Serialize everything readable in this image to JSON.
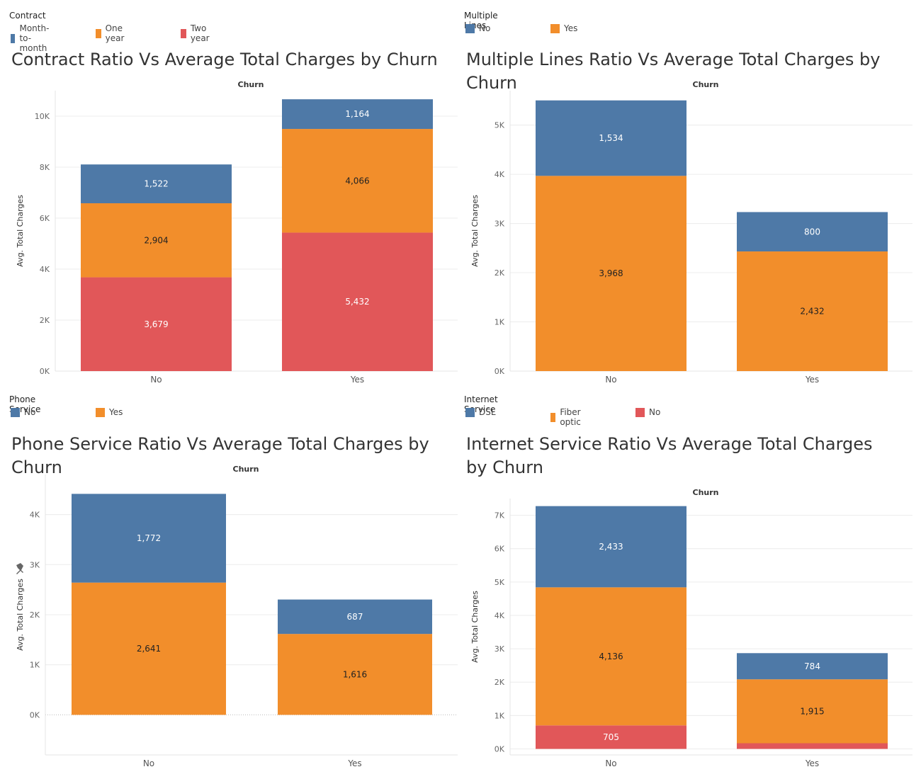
{
  "churn_header": "Churn",
  "y_axis_label": "Avg. Total Charges",
  "pin_icon": "pin-icon",
  "colors": {
    "blue": "#4e79a7",
    "orange": "#f28e2b",
    "red": "#e15759"
  },
  "chart_data": [
    {
      "type": "bar",
      "stacked": true,
      "legend_title": "Contract",
      "title": "Contract Ratio Vs Average Total Charges by Churn",
      "xlabel": "Churn",
      "ylabel": "Avg. Total Charges",
      "categories": [
        "No",
        "Yes"
      ],
      "ylim": [
        0,
        11000
      ],
      "yticks": [
        0,
        2000,
        4000,
        6000,
        8000,
        10000
      ],
      "tick_labels": [
        "0K",
        "2K",
        "4K",
        "6K",
        "8K",
        "10K"
      ],
      "series": [
        {
          "name": "Two year",
          "color": "#e15759",
          "values": [
            3679,
            5432
          ],
          "labels": [
            "3,679",
            "5,432"
          ]
        },
        {
          "name": "One year",
          "color": "#f28e2b",
          "values": [
            2904,
            4066
          ],
          "labels": [
            "2,904",
            "4,066"
          ]
        },
        {
          "name": "Month-to-month",
          "color": "#4e79a7",
          "values": [
            1522,
            1164
          ],
          "labels": [
            "1,522",
            "1,164"
          ]
        }
      ],
      "legend": [
        "Month-to-month",
        "One year",
        "Two year"
      ]
    },
    {
      "type": "bar",
      "stacked": true,
      "legend_title": "Multiple Lines",
      "title": "Multiple Lines Ratio Vs Average Total Charges by Churn",
      "xlabel": "Churn",
      "ylabel": "Avg. Total Charges",
      "categories": [
        "No",
        "Yes"
      ],
      "ylim": [
        0,
        5700
      ],
      "yticks": [
        0,
        1000,
        2000,
        3000,
        4000,
        5000
      ],
      "tick_labels": [
        "0K",
        "1K",
        "2K",
        "3K",
        "4K",
        "5K"
      ],
      "series": [
        {
          "name": "Yes",
          "color": "#f28e2b",
          "values": [
            3968,
            2432
          ],
          "labels": [
            "3,968",
            "2,432"
          ]
        },
        {
          "name": "No",
          "color": "#4e79a7",
          "values": [
            1534,
            800
          ],
          "labels": [
            "1,534",
            "800"
          ]
        }
      ],
      "legend": [
        "No",
        "Yes"
      ]
    },
    {
      "type": "bar",
      "stacked": true,
      "legend_title": "Phone Service",
      "title": "Phone Service Ratio Vs Average Total Charges by Churn",
      "xlabel": "Churn",
      "ylabel": "Avg. Total Charges",
      "categories": [
        "No",
        "Yes"
      ],
      "ylim": [
        -800,
        4800
      ],
      "yticks": [
        0,
        1000,
        2000,
        3000,
        4000
      ],
      "tick_labels": [
        "0K",
        "1K",
        "2K",
        "3K",
        "4K"
      ],
      "series": [
        {
          "name": "Yes",
          "color": "#f28e2b",
          "values": [
            2641,
            1616
          ],
          "labels": [
            "2,641",
            "1,616"
          ]
        },
        {
          "name": "No",
          "color": "#4e79a7",
          "values": [
            1772,
            687
          ],
          "labels": [
            "1,772",
            "687"
          ]
        }
      ],
      "legend": [
        "No",
        "Yes"
      ]
    },
    {
      "type": "bar",
      "stacked": true,
      "legend_title": "Internet Service",
      "title": "Internet Service Ratio Vs Average Total Charges by Churn",
      "xlabel": "Churn",
      "ylabel": "Avg. Total Charges",
      "categories": [
        "No",
        "Yes"
      ],
      "ylim": [
        -180,
        7500
      ],
      "yticks": [
        0,
        1000,
        2000,
        3000,
        4000,
        5000,
        6000,
        7000
      ],
      "tick_labels": [
        "0K",
        "1K",
        "2K",
        "3K",
        "4K",
        "5K",
        "6K",
        "7K"
      ],
      "series": [
        {
          "name": "No",
          "color": "#e15759",
          "values": [
            705,
            170
          ],
          "labels": [
            "705",
            ""
          ]
        },
        {
          "name": "Fiber optic",
          "color": "#f28e2b",
          "values": [
            4136,
            1915
          ],
          "labels": [
            "4,136",
            "1,915"
          ]
        },
        {
          "name": "DSL",
          "color": "#4e79a7",
          "values": [
            2433,
            784
          ],
          "labels": [
            "2,433",
            "784"
          ]
        }
      ],
      "legend": [
        "DSL",
        "Fiber optic",
        "No"
      ]
    }
  ]
}
